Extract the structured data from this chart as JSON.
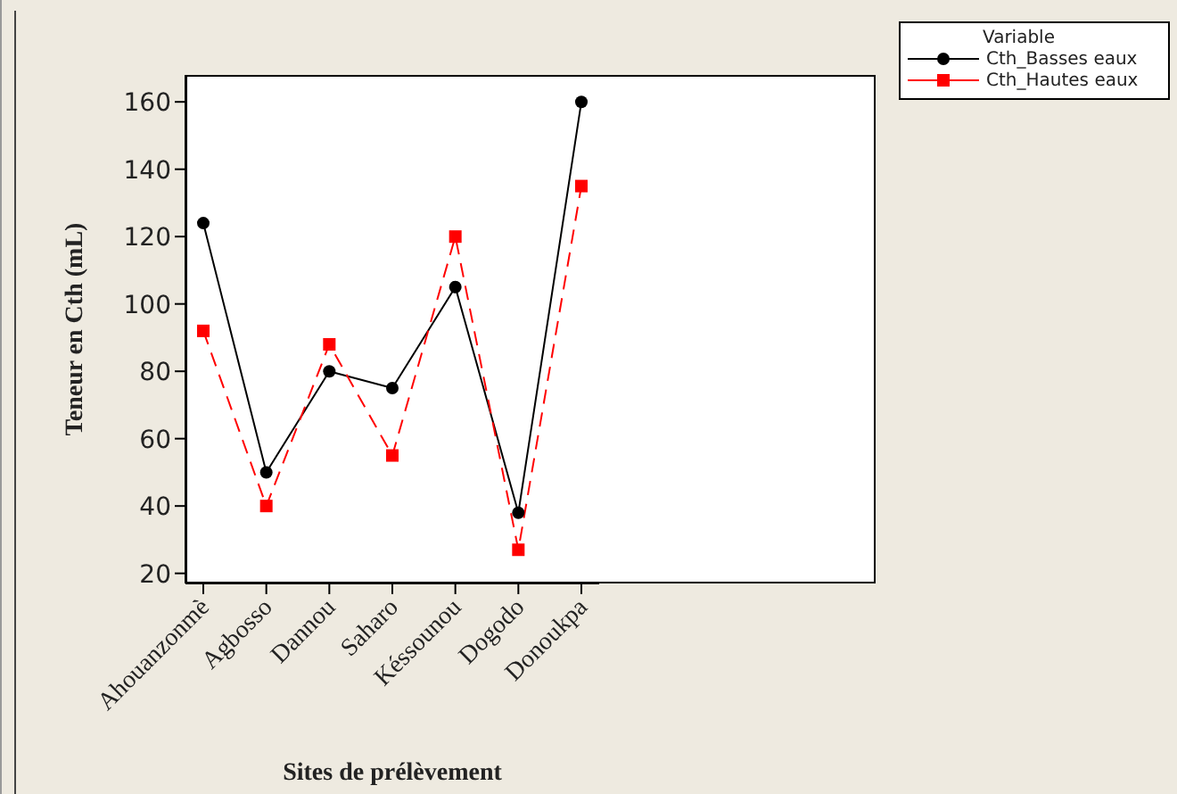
{
  "chart_data": {
    "type": "line",
    "xlabel": "Sites de prélèvement",
    "ylabel": "Teneur en Cth (mL)",
    "legend_title": "Variable",
    "categories": [
      "Ahouanzonmè",
      "Agbosso",
      "Dannou",
      "Saharo",
      "Késsounou",
      "Dogodo",
      "Donoukpa"
    ],
    "series": [
      {
        "name": "Cth_Basses eaux",
        "color": "#000000",
        "marker": "circle",
        "line_style": "solid",
        "values": [
          124,
          50,
          80,
          75,
          105,
          38,
          160
        ]
      },
      {
        "name": "Cth_Hautes eaux",
        "color": "#ff0000",
        "marker": "square",
        "line_style": "dashed",
        "values": [
          92,
          40,
          88,
          55,
          120,
          27,
          135
        ]
      }
    ],
    "ylim": [
      17,
      168
    ],
    "yticks": [
      20,
      40,
      60,
      80,
      100,
      120,
      140,
      160
    ],
    "grid": false,
    "legend": "top right"
  }
}
